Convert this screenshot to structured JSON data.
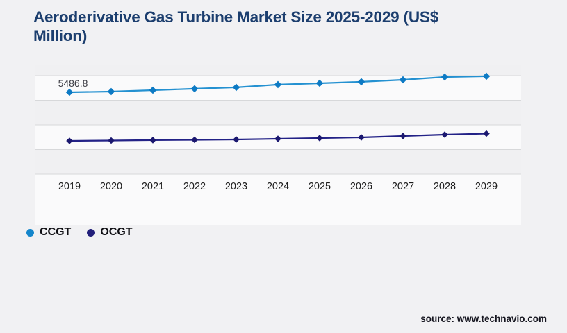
{
  "page": {
    "background": "#f1f1f3"
  },
  "header": {
    "title": "Aeroderivative Gas Turbine Market Size 2025-2029 (US$ Million)",
    "title_color": "#1c3e6e"
  },
  "footer": {
    "source_text": "source: www.technavio.com"
  },
  "legend": {
    "position": "bottom-left",
    "items": [
      {
        "label": "CCGT",
        "color": "#1586cb"
      },
      {
        "label": "OCGT",
        "color": "#221f7a"
      }
    ]
  },
  "chart_data": {
    "type": "line",
    "title": "Aeroderivative Gas Turbine Market Size 2025-2029 (US$ Million)",
    "xlabel": "",
    "ylabel": "US$ Million",
    "categories": [
      "2019",
      "2020",
      "2021",
      "2022",
      "2023",
      "2024",
      "2025",
      "2026",
      "2027",
      "2028",
      "2029"
    ],
    "series": [
      {
        "name": "CCGT",
        "line_color": "#2491d1",
        "marker_color": "#0d7ac4",
        "marker": "diamond",
        "values": [
          5486.8,
          5530,
          5625,
          5720,
          5815,
          6000,
          6090,
          6185,
          6320,
          6505,
          6560
        ]
      },
      {
        "name": "OCGT",
        "line_color": "#232287",
        "marker_color": "#1b1870",
        "marker": "diamond",
        "values": [
          2230,
          2255,
          2280,
          2300,
          2325,
          2370,
          2415,
          2465,
          2555,
          2650,
          2720
        ]
      }
    ],
    "data_labels": [
      {
        "series": "CCGT",
        "category": "2019",
        "text": "5486.8"
      }
    ],
    "ylim": [
      0,
      6600
    ],
    "y_ticks_visible": false,
    "gridline_count": 5,
    "grid_on": true,
    "grid_color": "#d7d8da",
    "band_color_light": "#fafafb",
    "band_color_dark": "#f0f0f2",
    "x_label_color": "#1a1a1a",
    "data_label_color": "#3a3a42",
    "legend_position": "bottom-left"
  }
}
